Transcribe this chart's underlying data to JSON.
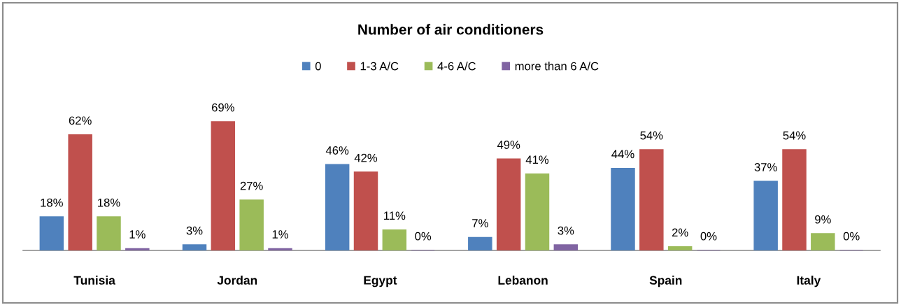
{
  "chart_data": {
    "type": "bar",
    "title": "Number of air conditioners",
    "categories": [
      "Tunisia",
      "Jordan",
      "Egypt",
      "Lebanon",
      "Spain",
      "Italy"
    ],
    "series": [
      {
        "name": "0",
        "color": "#4f81bd",
        "values": [
          18,
          3,
          46,
          7,
          44,
          37
        ],
        "value_labels": [
          "18%",
          "3%",
          "46%",
          "7%",
          "44%",
          "37%"
        ]
      },
      {
        "name": "1-3 A/C",
        "color": "#c0504d",
        "values": [
          62,
          69,
          42,
          49,
          54,
          54
        ],
        "value_labels": [
          "62%",
          "69%",
          "42%",
          "49%",
          "54%",
          "54%"
        ]
      },
      {
        "name": "4-6 A/C",
        "color": "#9bbb59",
        "values": [
          18,
          27,
          11,
          41,
          2,
          9
        ],
        "value_labels": [
          "18%",
          "27%",
          "11%",
          "41%",
          "2%",
          "9%"
        ]
      },
      {
        "name": "more than 6 A/C",
        "color": "#8064a2",
        "values": [
          1,
          1,
          0,
          3,
          0,
          0
        ],
        "value_labels": [
          "1%",
          "1%",
          "0%",
          "3%",
          "0%",
          "0%"
        ]
      }
    ],
    "legend": "top",
    "grid": false,
    "tick_labels": "x"
  }
}
